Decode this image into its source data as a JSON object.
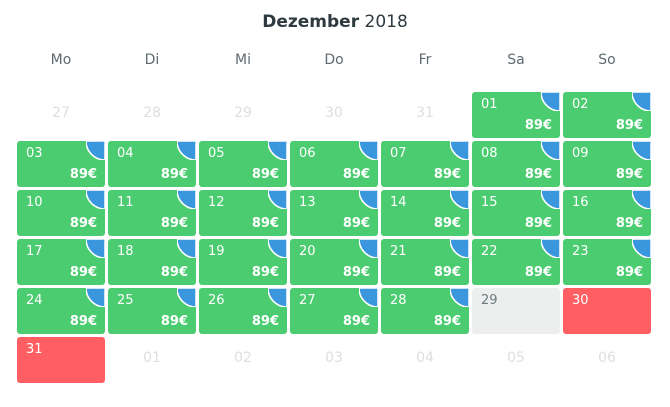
{
  "calendar": {
    "month": "Dezember",
    "year": "2018",
    "weekdays": [
      "Mo",
      "Di",
      "Mi",
      "Do",
      "Fr",
      "Sa",
      "So"
    ],
    "price_label": "89€",
    "colors": {
      "available": "#4ccc70",
      "booked": "#ff5f63",
      "neutral": "#ecefee",
      "corner": "#3a97dd"
    },
    "rows": [
      [
        {
          "day": "27",
          "state": "muted"
        },
        {
          "day": "28",
          "state": "muted"
        },
        {
          "day": "29",
          "state": "muted"
        },
        {
          "day": "30",
          "state": "muted"
        },
        {
          "day": "31",
          "state": "muted"
        },
        {
          "day": "01",
          "state": "available",
          "price": "89€"
        },
        {
          "day": "02",
          "state": "available",
          "price": "89€"
        }
      ],
      [
        {
          "day": "03",
          "state": "available",
          "price": "89€"
        },
        {
          "day": "04",
          "state": "available",
          "price": "89€"
        },
        {
          "day": "05",
          "state": "available",
          "price": "89€"
        },
        {
          "day": "06",
          "state": "available",
          "price": "89€"
        },
        {
          "day": "07",
          "state": "available",
          "price": "89€"
        },
        {
          "day": "08",
          "state": "available",
          "price": "89€"
        },
        {
          "day": "09",
          "state": "available",
          "price": "89€"
        }
      ],
      [
        {
          "day": "10",
          "state": "available",
          "price": "89€"
        },
        {
          "day": "11",
          "state": "available",
          "price": "89€"
        },
        {
          "day": "12",
          "state": "available",
          "price": "89€"
        },
        {
          "day": "13",
          "state": "available",
          "price": "89€"
        },
        {
          "day": "14",
          "state": "available",
          "price": "89€"
        },
        {
          "day": "15",
          "state": "available",
          "price": "89€"
        },
        {
          "day": "16",
          "state": "available",
          "price": "89€"
        }
      ],
      [
        {
          "day": "17",
          "state": "available",
          "price": "89€"
        },
        {
          "day": "18",
          "state": "available",
          "price": "89€"
        },
        {
          "day": "19",
          "state": "available",
          "price": "89€"
        },
        {
          "day": "20",
          "state": "available",
          "price": "89€"
        },
        {
          "day": "21",
          "state": "available",
          "price": "89€"
        },
        {
          "day": "22",
          "state": "available",
          "price": "89€"
        },
        {
          "day": "23",
          "state": "available",
          "price": "89€"
        }
      ],
      [
        {
          "day": "24",
          "state": "available",
          "price": "89€"
        },
        {
          "day": "25",
          "state": "available",
          "price": "89€"
        },
        {
          "day": "26",
          "state": "available",
          "price": "89€"
        },
        {
          "day": "27",
          "state": "available",
          "price": "89€"
        },
        {
          "day": "28",
          "state": "available",
          "price": "89€"
        },
        {
          "day": "29",
          "state": "neutral"
        },
        {
          "day": "30",
          "state": "booked"
        }
      ],
      [
        {
          "day": "31",
          "state": "booked"
        },
        {
          "day": "01",
          "state": "muted"
        },
        {
          "day": "02",
          "state": "muted"
        },
        {
          "day": "03",
          "state": "muted"
        },
        {
          "day": "04",
          "state": "muted"
        },
        {
          "day": "05",
          "state": "muted"
        },
        {
          "day": "06",
          "state": "muted"
        }
      ]
    ]
  }
}
